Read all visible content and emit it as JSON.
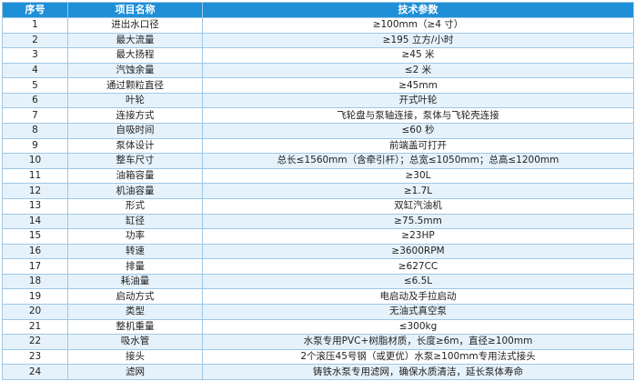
{
  "table": {
    "headers": {
      "no": "序号",
      "name": "项目名称",
      "param": "技术参数"
    },
    "rows": [
      {
        "no": "1",
        "name": "进出水口径",
        "param": "≥100mm（≥4 寸）"
      },
      {
        "no": "2",
        "name": "最大流量",
        "param": "≥195 立方/小时"
      },
      {
        "no": "3",
        "name": "最大扬程",
        "param": "≥45 米"
      },
      {
        "no": "4",
        "name": "汽蚀余量",
        "param": "≤2 米"
      },
      {
        "no": "5",
        "name": "通过颗粒直径",
        "param": "≥45mm"
      },
      {
        "no": "6",
        "name": "叶轮",
        "param": "开式叶轮"
      },
      {
        "no": "7",
        "name": "连接方式",
        "param": "飞轮盘与泵轴连接，泵体与飞轮壳连接"
      },
      {
        "no": "8",
        "name": "自吸时间",
        "param": "≤60 秒"
      },
      {
        "no": "9",
        "name": "泵体设计",
        "param": "前端盖可打开"
      },
      {
        "no": "10",
        "name": "整车尺寸",
        "param": "总长≤1560mm（含牵引杆）；总宽≤1050mm；总高≤1200mm"
      },
      {
        "no": "11",
        "name": "油箱容量",
        "param": "≥30L"
      },
      {
        "no": "12",
        "name": "机油容量",
        "param": "≥1.7L"
      },
      {
        "no": "13",
        "name": "形式",
        "param": "双缸汽油机"
      },
      {
        "no": "14",
        "name": "缸径",
        "param": "≥75.5mm"
      },
      {
        "no": "15",
        "name": "功率",
        "param": "≥23HP"
      },
      {
        "no": "16",
        "name": "转速",
        "param": "≥3600RPM"
      },
      {
        "no": "17",
        "name": "排量",
        "param": "≥627CC"
      },
      {
        "no": "18",
        "name": "耗油量",
        "param": "≤6.5L"
      },
      {
        "no": "19",
        "name": "启动方式",
        "param": "电启动及手拉启动"
      },
      {
        "no": "20",
        "name": "类型",
        "param": "无油式真空泵"
      },
      {
        "no": "21",
        "name": "整机重量",
        "param": "≤300kg"
      },
      {
        "no": "22",
        "name": "吸水管",
        "param": "水泵专用PVC+树脂材质，长度≥6m，直径≥100mm"
      },
      {
        "no": "23",
        "name": "接头",
        "param": "2个滚压45号钢（或更优）水泵≥100mm专用法式接头"
      },
      {
        "no": "24",
        "name": "滤网",
        "param": "铸铁水泵专用滤网，确保水质清洁，延长泵体寿命"
      }
    ]
  },
  "colors": {
    "header_bg": "#1f8fd8",
    "stripe_bg": "#e6f2fb",
    "border": "#9fc7e6"
  }
}
